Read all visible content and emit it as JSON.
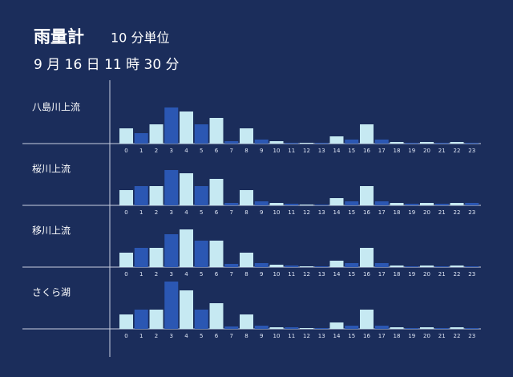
{
  "header": {
    "title": "雨量計",
    "unit": "10 分単位",
    "time": "9 月 16 日 11 時 30 分"
  },
  "chart_data": [
    {
      "type": "bar",
      "title": "八島川上流",
      "colors": [
        "#c6e9f2",
        "#2b57b3"
      ],
      "categories": [
        "0",
        "1",
        "2",
        "3",
        "4",
        "5",
        "6",
        "7",
        "8",
        "9",
        "10",
        "11",
        "12",
        "13",
        "14",
        "15",
        "16",
        "17",
        "18",
        "19",
        "20",
        "21",
        "22",
        "23"
      ],
      "values": [
        19,
        13,
        24,
        45,
        40,
        24,
        32,
        3,
        19,
        5,
        3,
        1,
        1,
        1,
        9,
        5,
        24,
        5,
        2,
        1,
        2,
        1,
        2,
        1
      ]
    },
    {
      "type": "bar",
      "title": "桜川上流",
      "colors": [
        "#c6e9f2",
        "#2b57b3"
      ],
      "categories": [
        "0",
        "1",
        "2",
        "3",
        "4",
        "5",
        "6",
        "7",
        "8",
        "9",
        "10",
        "11",
        "12",
        "13",
        "14",
        "15",
        "16",
        "17",
        "18",
        "19",
        "20",
        "21",
        "22",
        "23"
      ],
      "values": [
        19,
        24,
        24,
        44,
        40,
        24,
        33,
        3,
        19,
        5,
        3,
        2,
        1,
        1,
        9,
        5,
        24,
        5,
        3,
        2,
        3,
        2,
        3,
        3
      ]
    },
    {
      "type": "bar",
      "title": "移川上流",
      "colors": [
        "#c6e9f2",
        "#2b57b3"
      ],
      "categories": [
        "0",
        "1",
        "2",
        "3",
        "4",
        "5",
        "6",
        "7",
        "8",
        "9",
        "10",
        "11",
        "12",
        "13",
        "14",
        "15",
        "16",
        "17",
        "18",
        "19",
        "20",
        "21",
        "22",
        "23"
      ],
      "values": [
        18,
        24,
        24,
        41,
        47,
        33,
        33,
        4,
        18,
        5,
        3,
        2,
        1,
        1,
        8,
        5,
        24,
        5,
        2,
        1,
        2,
        1,
        2,
        1
      ]
    },
    {
      "type": "bar",
      "title": "さくら湖",
      "colors": [
        "#c6e9f2",
        "#2b57b3"
      ],
      "categories": [
        "0",
        "1",
        "2",
        "3",
        "4",
        "5",
        "6",
        "7",
        "8",
        "9",
        "10",
        "11",
        "12",
        "13",
        "14",
        "15",
        "16",
        "17",
        "18",
        "19",
        "20",
        "21",
        "22",
        "23"
      ],
      "values": [
        18,
        24,
        24,
        59,
        48,
        24,
        32,
        3,
        18,
        4,
        2,
        2,
        1,
        1,
        8,
        4,
        24,
        4,
        2,
        1,
        2,
        1,
        2,
        1
      ]
    }
  ]
}
